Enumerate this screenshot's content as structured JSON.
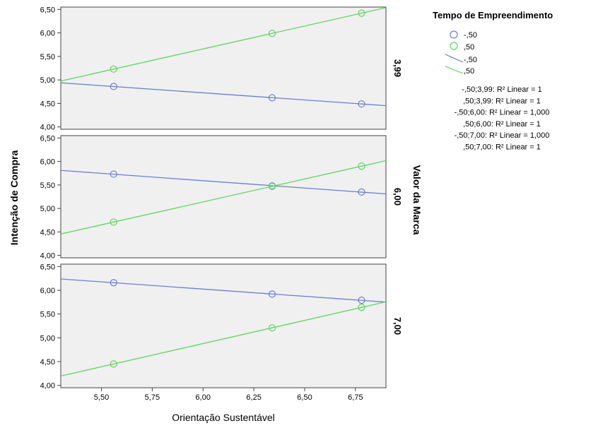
{
  "chart_data": {
    "type": "scatter",
    "xlabel": "Orientação Sustentável",
    "ylabel": "Intenção de Compra",
    "panel_axis_label": "Valor da Marca",
    "xlim": [
      5.3,
      6.9
    ],
    "ylim": [
      3.95,
      6.55
    ],
    "x_ticks": [
      "5,50",
      "5,75",
      "6,00",
      "6,25",
      "6,50",
      "6,75"
    ],
    "x_tick_values": [
      5.5,
      5.75,
      6.0,
      6.25,
      6.5,
      6.75
    ],
    "y_ticks": [
      "4,00",
      "4,50",
      "5,00",
      "5,50",
      "6,00",
      "6,50"
    ],
    "y_tick_values": [
      4.0,
      4.5,
      5.0,
      5.5,
      6.0,
      6.5
    ],
    "grid": false,
    "legend_position": "top-right",
    "legend": {
      "title": "Tempo de Empreendimento",
      "marker_labels": [
        "-,50",
        ",50"
      ],
      "line_labels": [
        "-,50",
        ",50"
      ],
      "fit_notes": [
        "-,50;3,99: R² Linear = 1",
        ",50;3,99: R² Linear = 1",
        "-,50;6,00: R² Linear = 1,000",
        ",50;6,00: R² Linear = 1",
        "-,50;7,00: R² Linear = 1,000",
        ",50;7,00: R² Linear = 1"
      ]
    },
    "colors": {
      "-,50": "#6a7fd2",
      ",50": "#5fd55f"
    },
    "panels": [
      {
        "label": "3,99",
        "series": [
          {
            "name": "-,50",
            "x": [
              5.56,
              6.34,
              6.78
            ],
            "y": [
              4.86,
              4.62,
              4.49
            ]
          },
          {
            "name": ",50",
            "x": [
              5.56,
              6.34,
              6.78
            ],
            "y": [
              5.23,
              5.99,
              6.42
            ]
          }
        ]
      },
      {
        "label": "6,00",
        "series": [
          {
            "name": "-,50",
            "x": [
              5.56,
              6.34,
              6.78
            ],
            "y": [
              5.73,
              5.48,
              5.35
            ]
          },
          {
            "name": ",50",
            "x": [
              5.56,
              6.34,
              6.78
            ],
            "y": [
              4.71,
              5.47,
              5.9
            ]
          }
        ]
      },
      {
        "label": "7,00",
        "series": [
          {
            "name": "-,50",
            "x": [
              5.56,
              6.34,
              6.78
            ],
            "y": [
              6.16,
              5.92,
              5.79
            ]
          },
          {
            "name": ",50",
            "x": [
              5.56,
              6.34,
              6.78
            ],
            "y": [
              4.45,
              5.21,
              5.64
            ]
          }
        ]
      }
    ]
  }
}
